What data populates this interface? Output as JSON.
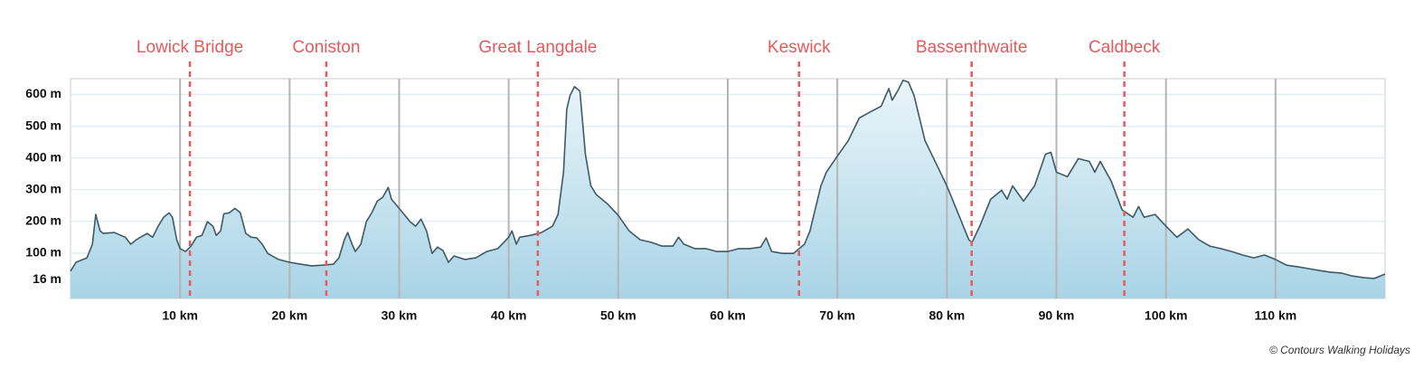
{
  "chart_data": {
    "type": "area",
    "color": "#3d5a66",
    "fill_color": "#a9d4e6",
    "marker_color": "#e8595c",
    "grid": true,
    "xlim": [
      0,
      120
    ],
    "ylim": [
      -43,
      650
    ],
    "xticks": [
      {
        "value": 10,
        "label": "10 km"
      },
      {
        "value": 20,
        "label": "20 km"
      },
      {
        "value": 30,
        "label": "30 km"
      },
      {
        "value": 40,
        "label": "40 km"
      },
      {
        "value": 50,
        "label": "50 km"
      },
      {
        "value": 60,
        "label": "60 km"
      },
      {
        "value": 70,
        "label": "70 km"
      },
      {
        "value": 80,
        "label": "80 km"
      },
      {
        "value": 90,
        "label": "90 km"
      },
      {
        "value": 100,
        "label": "100 km"
      },
      {
        "value": 110,
        "label": "110 km"
      }
    ],
    "yticks": [
      {
        "value": 16,
        "label": "16 m"
      },
      {
        "value": 100,
        "label": "100 m"
      },
      {
        "value": 200,
        "label": "200 m"
      },
      {
        "value": 300,
        "label": "300 m"
      },
      {
        "value": 400,
        "label": "400 m"
      },
      {
        "value": 500,
        "label": "500 m"
      },
      {
        "value": 600,
        "label": "600 m"
      }
    ],
    "markers": [
      {
        "label": "Lowick Bridge",
        "x": 10.9
      },
      {
        "label": "Coniston",
        "x": 23.35
      },
      {
        "label": "Great Langdale",
        "x": 42.66
      },
      {
        "label": "Keswick",
        "x": 66.5
      },
      {
        "label": "Bassenthwaite",
        "x": 82.26
      },
      {
        "label": "Caldbeck",
        "x": 96.2
      }
    ],
    "credit": "© Contours Walking Holidays",
    "x": [
      0,
      0.5,
      1.5,
      2,
      2.3,
      2.7,
      3,
      4,
      5,
      5.5,
      6,
      7,
      7.5,
      8,
      8.5,
      9,
      9.3,
      9.7,
      10,
      10.5,
      11,
      11.5,
      12,
      12.5,
      13,
      13.3,
      13.7,
      14,
      14.5,
      15,
      15.5,
      16,
      16.5,
      17,
      17.5,
      18,
      19,
      20,
      21,
      22,
      23,
      24,
      24.5,
      25,
      25.3,
      25.7,
      26,
      26.5,
      27,
      27.5,
      28,
      28.5,
      29,
      29.3,
      30,
      31,
      31.5,
      32,
      32.5,
      33,
      33.5,
      34,
      34.5,
      35,
      36,
      37,
      38,
      39,
      40,
      40.3,
      40.7,
      41,
      42,
      43,
      44,
      44.5,
      45,
      45.3,
      45.6,
      46,
      46.5,
      47,
      47.5,
      48,
      49,
      50,
      51,
      52,
      53,
      54,
      55,
      55.5,
      56,
      57,
      58,
      59,
      60,
      61,
      62,
      63,
      63.5,
      64,
      65,
      66,
      67,
      67.5,
      68,
      68.5,
      69,
      70,
      71,
      72,
      73,
      74,
      74.7,
      75,
      75.5,
      76,
      76.5,
      77,
      78,
      79,
      80,
      81,
      82,
      82.3,
      83,
      84,
      85,
      85.5,
      86,
      87,
      88,
      89,
      89.5,
      90,
      91,
      92,
      93,
      93.5,
      94,
      95,
      96,
      97,
      97.5,
      98,
      99,
      100,
      101,
      102,
      103,
      104,
      105,
      106,
      107,
      108,
      109,
      110,
      111,
      112,
      113,
      114,
      115,
      116,
      117,
      118,
      119,
      120
    ],
    "values": [
      43,
      71,
      85,
      128,
      222,
      170,
      162,
      165,
      150,
      128,
      142,
      162,
      150,
      185,
      213,
      227,
      213,
      142,
      114,
      105,
      122,
      150,
      156,
      199,
      185,
      156,
      170,
      224,
      227,
      241,
      227,
      162,
      150,
      148,
      128,
      99,
      80,
      71,
      65,
      60,
      62,
      65,
      85,
      142,
      165,
      128,
      105,
      128,
      199,
      227,
      264,
      276,
      307,
      270,
      241,
      199,
      185,
      207,
      170,
      99,
      119,
      108,
      71,
      91,
      80,
      85,
      105,
      114,
      150,
      170,
      128,
      150,
      156,
      165,
      185,
      222,
      355,
      554,
      597,
      625,
      611,
      412,
      312,
      284,
      256,
      219,
      170,
      142,
      134,
      122,
      122,
      150,
      128,
      114,
      114,
      105,
      105,
      114,
      114,
      119,
      148,
      105,
      99,
      99,
      128,
      170,
      241,
      312,
      355,
      406,
      455,
      526,
      545,
      563,
      619,
      582,
      611,
      645,
      639,
      597,
      455,
      384,
      312,
      227,
      142,
      134,
      185,
      270,
      298,
      270,
      312,
      264,
      312,
      412,
      418,
      355,
      341,
      398,
      389,
      355,
      389,
      327,
      236,
      213,
      247,
      213,
      222,
      185,
      150,
      176,
      142,
      122,
      114,
      105,
      94,
      85,
      94,
      80,
      62,
      57,
      51,
      45,
      40,
      37,
      28,
      23,
      20,
      34
    ]
  }
}
